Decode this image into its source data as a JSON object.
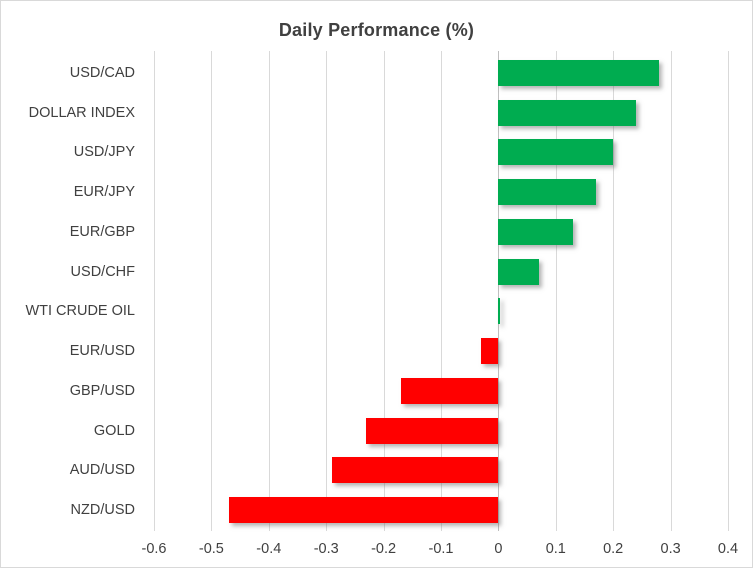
{
  "chart_data": {
    "type": "bar",
    "orientation": "horizontal",
    "title": "Daily Performance (%)",
    "categories": [
      "USD/CAD",
      "DOLLAR INDEX",
      "USD/JPY",
      "EUR/JPY",
      "EUR/GBP",
      "USD/CHF",
      "WTI CRUDE OIL",
      "EUR/USD",
      "GBP/USD",
      "GOLD",
      "AUD/USD",
      "NZD/USD"
    ],
    "values": [
      0.28,
      0.24,
      0.2,
      0.17,
      0.13,
      0.07,
      0.0,
      -0.03,
      -0.17,
      -0.23,
      -0.29,
      -0.47
    ],
    "xlim": [
      -0.6,
      0.4
    ],
    "x_ticks": [
      -0.6,
      -0.5,
      -0.4,
      -0.3,
      -0.2,
      -0.1,
      0,
      0.1,
      0.2,
      0.3,
      0.4
    ],
    "x_tick_labels": [
      "-0.6",
      "-0.5",
      "-0.4",
      "-0.3",
      "-0.2",
      "-0.1",
      "0",
      "0.1",
      "0.2",
      "0.3",
      "0.4"
    ],
    "grid": true,
    "legend": false,
    "xlabel": "",
    "ylabel": "",
    "colors": {
      "positive": "#00AC50",
      "negative": "#FF0000",
      "gridline": "#D9D9D9",
      "axis_line": "#BFBFBF",
      "text": "#404040",
      "background": "#FFFFFF",
      "border": "#D9D9D9"
    }
  }
}
